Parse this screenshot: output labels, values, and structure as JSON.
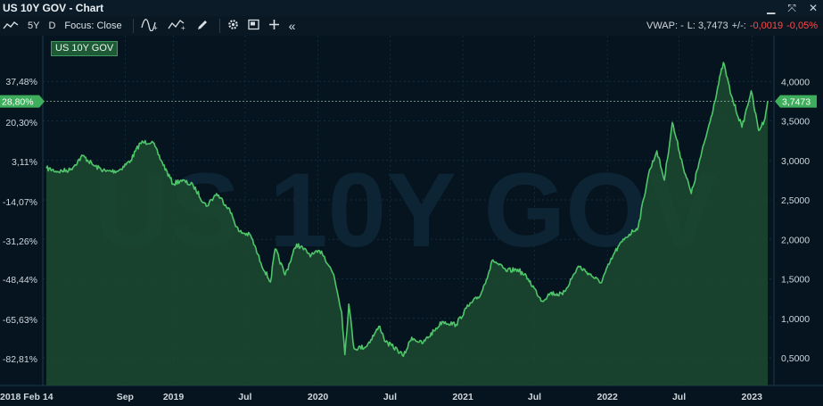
{
  "window": {
    "title": "US 10Y GOV - Chart"
  },
  "toolbar": {
    "period": "5Y",
    "interval": "D",
    "focus": "Focus: Close",
    "collapse": "«"
  },
  "quote": {
    "vwap_label": "VWAP: -",
    "last": "L: 3,7473",
    "change_label": "+/-:",
    "change": "-0,0019",
    "change_pct": "-0,05%"
  },
  "legend": {
    "label": "US 10Y GOV"
  },
  "watermark": "US 10Y GOV",
  "colors": {
    "line": "#4fc56a",
    "fill": "#1c4a30",
    "negative": "#ff4a4a",
    "background": "#06141f"
  },
  "chart_data": {
    "type": "area",
    "series": [
      {
        "name": "US 10Y GOV"
      }
    ],
    "y_right_ticks": [
      "4,0000",
      "3,5000",
      "3,0000",
      "2,5000",
      "2,0000",
      "1,5000",
      "1,0000",
      "0,5000"
    ],
    "y_right_values": [
      4.0,
      3.5,
      3.0,
      2.5,
      2.0,
      1.5,
      1.0,
      0.5
    ],
    "y_left_ticks": [
      "37,48%",
      "20,30%",
      "3,11%",
      "-14,07%",
      "-31,26%",
      "-48,44%",
      "-65,63%",
      "-82,81%"
    ],
    "x_ticks": [
      "2018 Feb 14",
      "Sep",
      "2019",
      "Jul",
      "2020",
      "Jul",
      "2021",
      "Jul",
      "2022",
      "Jul",
      "2023"
    ],
    "current_value": 3.7473,
    "current_value_label": "3,7473",
    "current_pct_label": "28,80%",
    "ylim": [
      0.0,
      4.5
    ],
    "points": [
      [
        "2018-02-14",
        2.9
      ],
      [
        "2018-03-15",
        2.86
      ],
      [
        "2018-04-15",
        2.88
      ],
      [
        "2018-05-17",
        3.06
      ],
      [
        "2018-06-15",
        2.93
      ],
      [
        "2018-07-15",
        2.86
      ],
      [
        "2018-08-15",
        2.87
      ],
      [
        "2018-09-15",
        3.0
      ],
      [
        "2018-10-09",
        3.22
      ],
      [
        "2018-11-08",
        3.24
      ],
      [
        "2018-12-01",
        3.0
      ],
      [
        "2018-12-31",
        2.7
      ],
      [
        "2019-01-20",
        2.75
      ],
      [
        "2019-02-20",
        2.68
      ],
      [
        "2019-03-25",
        2.42
      ],
      [
        "2019-04-20",
        2.58
      ],
      [
        "2019-05-20",
        2.4
      ],
      [
        "2019-06-15",
        2.1
      ],
      [
        "2019-07-15",
        2.05
      ],
      [
        "2019-08-10",
        1.7
      ],
      [
        "2019-09-03",
        1.46
      ],
      [
        "2019-09-15",
        1.88
      ],
      [
        "2019-10-10",
        1.55
      ],
      [
        "2019-11-08",
        1.94
      ],
      [
        "2019-12-15",
        1.8
      ],
      [
        "2020-01-10",
        1.85
      ],
      [
        "2020-02-10",
        1.55
      ],
      [
        "2020-03-01",
        1.08
      ],
      [
        "2020-03-09",
        0.54
      ],
      [
        "2020-03-19",
        1.18
      ],
      [
        "2020-04-01",
        0.62
      ],
      [
        "2020-05-01",
        0.64
      ],
      [
        "2020-06-05",
        0.9
      ],
      [
        "2020-06-20",
        0.7
      ],
      [
        "2020-07-20",
        0.6
      ],
      [
        "2020-08-04",
        0.52
      ],
      [
        "2020-08-25",
        0.76
      ],
      [
        "2020-09-20",
        0.68
      ],
      [
        "2020-10-20",
        0.84
      ],
      [
        "2020-11-10",
        0.96
      ],
      [
        "2020-12-15",
        0.92
      ],
      [
        "2021-01-10",
        1.13
      ],
      [
        "2021-02-15",
        1.3
      ],
      [
        "2021-03-18",
        1.74
      ],
      [
        "2021-04-20",
        1.6
      ],
      [
        "2021-05-20",
        1.62
      ],
      [
        "2021-06-15",
        1.5
      ],
      [
        "2021-07-20",
        1.22
      ],
      [
        "2021-08-10",
        1.32
      ],
      [
        "2021-09-10",
        1.3
      ],
      [
        "2021-10-20",
        1.66
      ],
      [
        "2021-11-15",
        1.57
      ],
      [
        "2021-12-15",
        1.45
      ],
      [
        "2022-01-20",
        1.84
      ],
      [
        "2022-02-15",
        2.02
      ],
      [
        "2022-03-20",
        2.16
      ],
      [
        "2022-04-15",
        2.83
      ],
      [
        "2022-05-06",
        3.12
      ],
      [
        "2022-05-25",
        2.75
      ],
      [
        "2022-06-14",
        3.48
      ],
      [
        "2022-07-10",
        2.95
      ],
      [
        "2022-08-01",
        2.58
      ],
      [
        "2022-08-25",
        3.05
      ],
      [
        "2022-09-20",
        3.55
      ],
      [
        "2022-10-21",
        4.24
      ],
      [
        "2022-11-10",
        3.82
      ],
      [
        "2022-12-07",
        3.42
      ],
      [
        "2022-12-30",
        3.88
      ],
      [
        "2023-01-18",
        3.38
      ],
      [
        "2023-02-01",
        3.5
      ],
      [
        "2023-02-10",
        3.75
      ]
    ]
  }
}
